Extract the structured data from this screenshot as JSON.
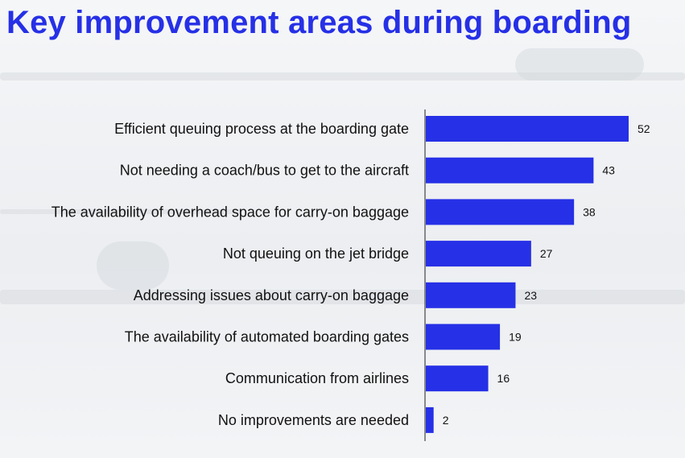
{
  "title": "Key improvement areas during boarding",
  "colors": {
    "title": "#2630e6",
    "bar": "#2630e6",
    "axis": "#444444"
  },
  "chart_data": {
    "type": "bar",
    "orientation": "horizontal",
    "categories": [
      "Efficient queuing process at the boarding gate",
      "Not needing a coach/bus to get to the aircraft",
      "The availability of overhead space for carry-on baggage",
      "Not queuing on the jet bridge",
      "Addressing issues about carry-on baggage",
      "The availability of automated boarding gates",
      "Communication from airlines",
      "No improvements are needed"
    ],
    "values": [
      52,
      43,
      38,
      27,
      23,
      19,
      16,
      2
    ],
    "title": "Key improvement areas during boarding",
    "xlabel": "",
    "ylabel": "",
    "xlim": [
      0,
      52
    ],
    "grid": false,
    "legend": "none",
    "data_labels": true
  }
}
